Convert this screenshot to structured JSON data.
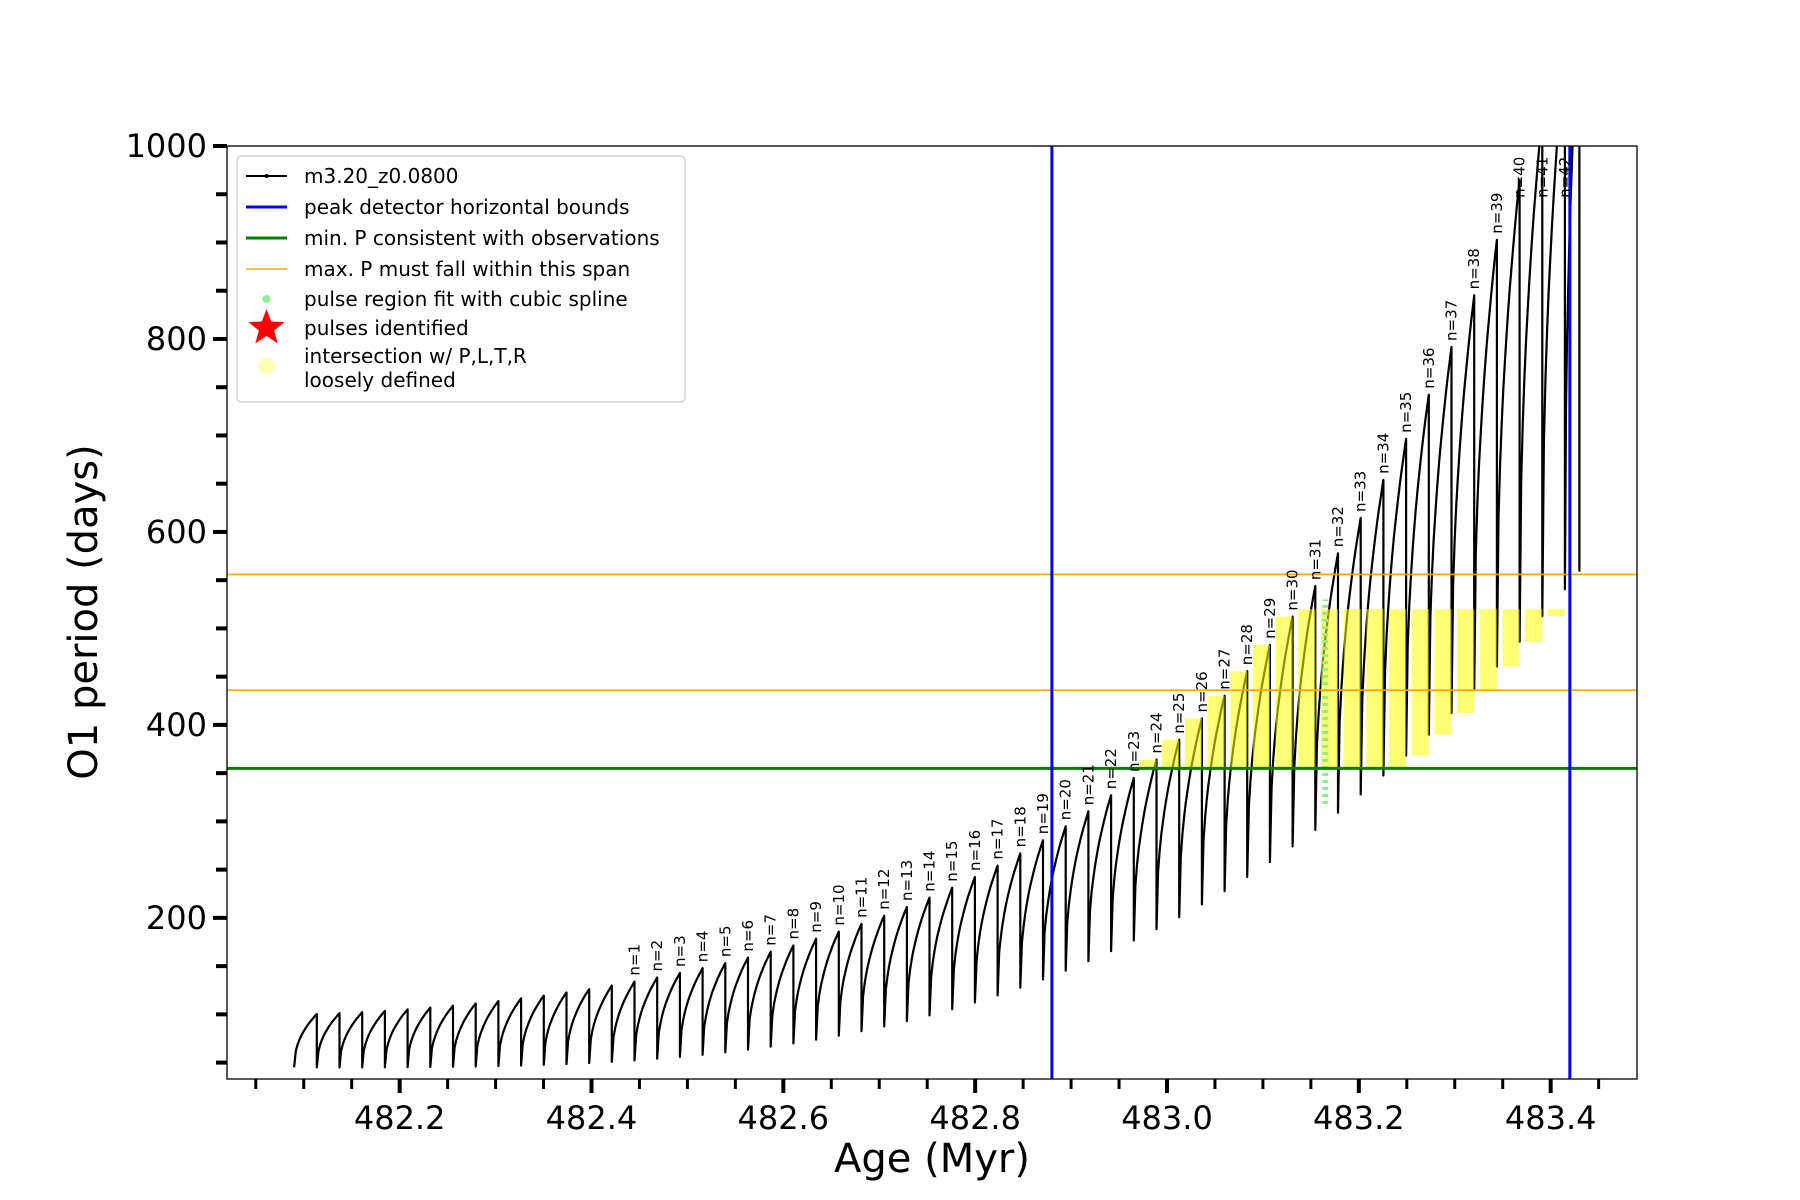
{
  "chart_data": {
    "type": "line",
    "xlabel": "Age (Myr)",
    "ylabel": "O1 period (days)",
    "xlim": [
      482.02,
      483.49
    ],
    "ylim": [
      33,
      1000
    ],
    "x_ticks": [
      482.2,
      482.4,
      482.6,
      482.8,
      483.0,
      483.2,
      483.4
    ],
    "x_tick_labels": [
      "482.2",
      "482.4",
      "482.6",
      "482.8",
      "483.0",
      "483.2",
      "483.4"
    ],
    "y_ticks": [
      200,
      400,
      600,
      800,
      1000
    ],
    "y_tick_labels": [
      "200",
      "400",
      "600",
      "800",
      "1000"
    ],
    "x_minor_step": 0.05,
    "y_minor_step": 50,
    "grid": false,
    "legend_position": "top-left",
    "series": [
      {
        "name": "m3.20_z0.0800",
        "color": "#000000",
        "style": "line-with-point-markers",
        "pulse_cycles": {
          "x_start": 482.09,
          "x_end": 483.43,
          "count_after_first_pulse": 42,
          "baseline_min_start": 45,
          "baseline_min_end": 500,
          "peak_start": 100,
          "peak_end": 1000,
          "x_pulse_1": 482.41,
          "x_pulse_42": 483.38
        }
      },
      {
        "name": "peak detector horizontal bounds",
        "color": "#0000ff",
        "x": [
          482.88,
          483.42
        ]
      },
      {
        "name": "min. P consistent with observations",
        "color": "#008000",
        "y": 355
      },
      {
        "name": "max. P must fall within this span",
        "color": "#ffa500",
        "y": [
          436,
          556
        ]
      },
      {
        "name": "pulse region fit with cubic spline",
        "color": "#90ee90",
        "x": 483.165,
        "y_range": [
          318,
          530
        ]
      },
      {
        "name": "pulses identified",
        "color": "#ff0000",
        "marker": "star"
      },
      {
        "name": "intersection w/ P,L,T,R\nloosely defined",
        "color": "#ffff00",
        "y_range": [
          355,
          556
        ]
      }
    ],
    "annotations": [
      "n=1",
      "n=2",
      "n=3",
      "n=4",
      "n=5",
      "n=6",
      "n=7",
      "n=8",
      "n=9",
      "n=10",
      "n=11",
      "n=12",
      "n=13",
      "n=14",
      "n=15",
      "n=16",
      "n=17",
      "n=18",
      "n=19",
      "n=20",
      "n=21",
      "n=22",
      "n=23",
      "n=24",
      "n=25",
      "n=26",
      "n=27",
      "n=28",
      "n=29",
      "n=30",
      "n=31",
      "n=32",
      "n=33",
      "n=34",
      "n=35",
      "n=36",
      "n=37",
      "n=38",
      "n=39",
      "n=40",
      "n=41",
      "n=42"
    ]
  }
}
